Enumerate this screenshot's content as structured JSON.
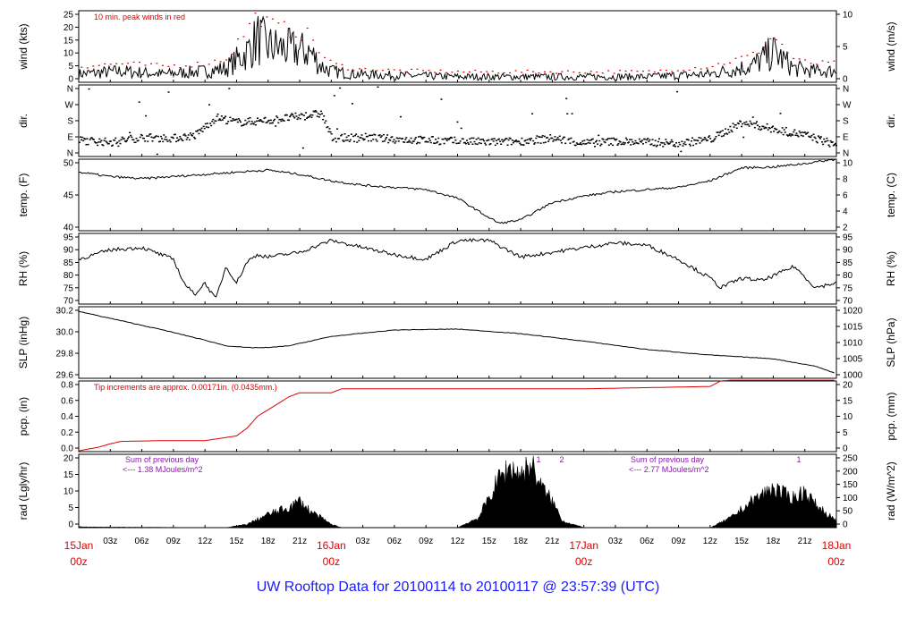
{
  "title": "UW Rooftop Data for 20100114  to  20100117 @ 23:57:39  (UTC)",
  "x_axis": {
    "major": [
      {
        "t": 0,
        "day": "15Jan",
        "time": "00z"
      },
      {
        "t": 24,
        "day": "16Jan",
        "time": "00z"
      },
      {
        "t": 48,
        "day": "17Jan",
        "time": "00z"
      },
      {
        "t": 72,
        "day": "18Jan",
        "time": "00z"
      }
    ],
    "minor": [
      "03z",
      "06z",
      "09z",
      "12z",
      "15z",
      "18z",
      "21z"
    ]
  },
  "panels": [
    {
      "id": "wind",
      "left_label": "wind (kts)",
      "right_label": "wind (m/s)",
      "left_ticks": [
        "0",
        "5",
        "10",
        "15",
        "20",
        "25"
      ],
      "right_ticks": [
        "0",
        "5",
        "10"
      ],
      "note": "10 min. peak winds in red"
    },
    {
      "id": "dir",
      "left_label": "dir.",
      "right_label": "dir.",
      "left_ticks": [
        "N",
        "E",
        "S",
        "W",
        "N"
      ],
      "right_ticks": [
        "N",
        "E",
        "S",
        "W",
        "N"
      ]
    },
    {
      "id": "temp",
      "left_label": "temp. (F)",
      "right_label": "temp. (C)",
      "left_ticks": [
        "40",
        "45",
        "50"
      ],
      "right_ticks": [
        "2",
        "4",
        "6",
        "8",
        "10"
      ]
    },
    {
      "id": "rh",
      "left_label": "RH (%)",
      "right_label": "RH (%)",
      "left_ticks": [
        "70",
        "75",
        "80",
        "85",
        "90",
        "95"
      ],
      "right_ticks": [
        "70",
        "75",
        "80",
        "85",
        "90",
        "95"
      ]
    },
    {
      "id": "slp",
      "left_label": "SLP (inHg)",
      "right_label": "SLP (hPa)",
      "left_ticks": [
        "29.6",
        "29.8",
        "30.0",
        "30.2"
      ],
      "right_ticks": [
        "1000",
        "1005",
        "1010",
        "1015",
        "1020"
      ]
    },
    {
      "id": "pcp",
      "left_label": "pcp. (in)",
      "right_label": "pcp. (mm)",
      "left_ticks": [
        "0.0",
        "0.2",
        "0.4",
        "0.6",
        "0.8"
      ],
      "right_ticks": [
        "0",
        "5",
        "10",
        "15",
        "20"
      ],
      "note": "Tip increments are approx. 0.00171in. (0.0435mm.)"
    },
    {
      "id": "rad",
      "left_label": "rad (Lgly/hr)",
      "right_label": "rad (W/m^2)",
      "left_ticks": [
        "0",
        "5",
        "10",
        "15",
        "20"
      ],
      "right_ticks": [
        "0",
        "50",
        "100",
        "150",
        "200",
        "250"
      ],
      "notes": [
        {
          "line1": "Sum of previous day",
          "line2": "<--- 1.38 MJoules/m^2"
        },
        {
          "line1": "Sum of previous day",
          "line2": "<--- 2.77 MJoules/m^2"
        }
      ],
      "markers": [
        "1",
        "2",
        "1"
      ]
    }
  ],
  "chart_data": [
    {
      "type": "line",
      "name": "wind speed",
      "ylabel": "wind (kts)",
      "xlabel": "",
      "ylim": [
        0,
        26
      ],
      "x": [
        0,
        4,
        8,
        12,
        14,
        16,
        17,
        18,
        20,
        22,
        23,
        24,
        26,
        30,
        36,
        42,
        48,
        54,
        60,
        64,
        66,
        68,
        70,
        72
      ],
      "values": [
        3,
        4,
        3,
        4,
        5,
        11,
        16,
        13,
        12,
        11,
        6,
        4,
        3,
        2.5,
        2,
        2,
        2,
        2,
        3,
        6,
        11,
        5,
        4,
        4
      ],
      "peaks": [
        6,
        7,
        6,
        7,
        9,
        20,
        25,
        21,
        19,
        17,
        10,
        7,
        5,
        4.5,
        4,
        4,
        4,
        4,
        6,
        10,
        17,
        8,
        7,
        7
      ]
    },
    {
      "type": "scatter",
      "name": "wind direction",
      "ylabel": "dir.",
      "xlabel": "",
      "ylim": [
        0,
        360
      ],
      "x": [
        0,
        3,
        6,
        9,
        11,
        13,
        15,
        18,
        21,
        23,
        24,
        27,
        30,
        33,
        36,
        39,
        42,
        45,
        48,
        51,
        54,
        57,
        60,
        63,
        66,
        69,
        72
      ],
      "values": [
        85,
        75,
        100,
        95,
        110,
        200,
        175,
        185,
        205,
        220,
        95,
        100,
        90,
        85,
        80,
        75,
        80,
        95,
        70,
        80,
        75,
        70,
        90,
        175,
        140,
        110,
        60
      ]
    },
    {
      "type": "line",
      "name": "temperature",
      "ylabel": "temp. (F)",
      "xlabel": "",
      "ylim": [
        35.5,
        52
      ],
      "x": [
        0,
        3,
        6,
        9,
        12,
        15,
        18,
        21,
        24,
        27,
        30,
        33,
        36,
        39,
        40,
        42,
        45,
        48,
        51,
        54,
        57,
        60,
        63,
        66,
        69,
        72
      ],
      "values": [
        49,
        48,
        47.5,
        48,
        48.5,
        49,
        49.5,
        48.5,
        47,
        46,
        45.5,
        45,
        43,
        38.5,
        37.2,
        38,
        42,
        43.5,
        44.5,
        45,
        45.5,
        47,
        50,
        50.2,
        51,
        52
      ]
    },
    {
      "type": "line",
      "name": "relative humidity",
      "ylabel": "RH (%)",
      "xlabel": "",
      "ylim": [
        69,
        99
      ],
      "x": [
        0,
        3,
        6,
        9,
        10,
        11,
        12,
        13,
        14,
        15,
        16,
        17,
        18,
        21,
        24,
        27,
        30,
        33,
        36,
        39,
        42,
        45,
        48,
        51,
        54,
        57,
        60,
        61,
        63,
        65,
        68,
        70,
        72
      ],
      "values": [
        88,
        92,
        93,
        88,
        78,
        73,
        78,
        71,
        85,
        78,
        87,
        90,
        89,
        91,
        96,
        93,
        90,
        88,
        96,
        96,
        89,
        91,
        93,
        95,
        94,
        88,
        80,
        76,
        80,
        79,
        85,
        76,
        78
      ]
    },
    {
      "type": "line",
      "name": "sea level pressure",
      "ylabel": "SLP (inHg)",
      "xlabel": "",
      "ylim": [
        29.45,
        30.22
      ],
      "x": [
        0,
        4,
        8,
        12,
        14,
        16,
        18,
        20,
        24,
        30,
        36,
        42,
        48,
        54,
        60,
        66,
        70,
        72
      ],
      "values": [
        30.17,
        30.07,
        29.97,
        29.86,
        29.8,
        29.78,
        29.78,
        29.8,
        29.9,
        29.97,
        29.98,
        29.93,
        29.85,
        29.76,
        29.7,
        29.66,
        29.58,
        29.5
      ]
    },
    {
      "type": "line",
      "name": "precipitation",
      "ylabel": "pcp. (in)",
      "xlabel": "",
      "ylim": [
        0,
        0.9
      ],
      "x": [
        0,
        2,
        3,
        4,
        8,
        12,
        15,
        16,
        17,
        20,
        21,
        24,
        25,
        26,
        36,
        48,
        60,
        61,
        62,
        72
      ],
      "values": [
        0.01,
        0.06,
        0.1,
        0.13,
        0.14,
        0.14,
        0.2,
        0.3,
        0.45,
        0.7,
        0.75,
        0.75,
        0.8,
        0.8,
        0.8,
        0.8,
        0.83,
        0.9,
        0.91,
        0.91
      ]
    },
    {
      "type": "area",
      "name": "solar radiation",
      "ylabel": "rad (Lgly/hr)",
      "xlabel": "",
      "ylim": [
        0,
        22
      ],
      "x": [
        0,
        1,
        14,
        16,
        18,
        20,
        21,
        22,
        23,
        24,
        25,
        36,
        38,
        40,
        41,
        42,
        43,
        44,
        45,
        46,
        48,
        49,
        60,
        62,
        64,
        66,
        67,
        68,
        69,
        70,
        72
      ],
      "values": [
        0.3,
        0.2,
        0,
        1,
        4,
        6,
        8,
        5,
        3,
        1,
        0,
        0,
        3,
        15,
        18,
        16,
        19,
        12,
        8,
        2,
        0,
        0,
        0,
        3,
        8,
        12,
        10,
        9,
        11,
        7,
        2
      ]
    }
  ]
}
